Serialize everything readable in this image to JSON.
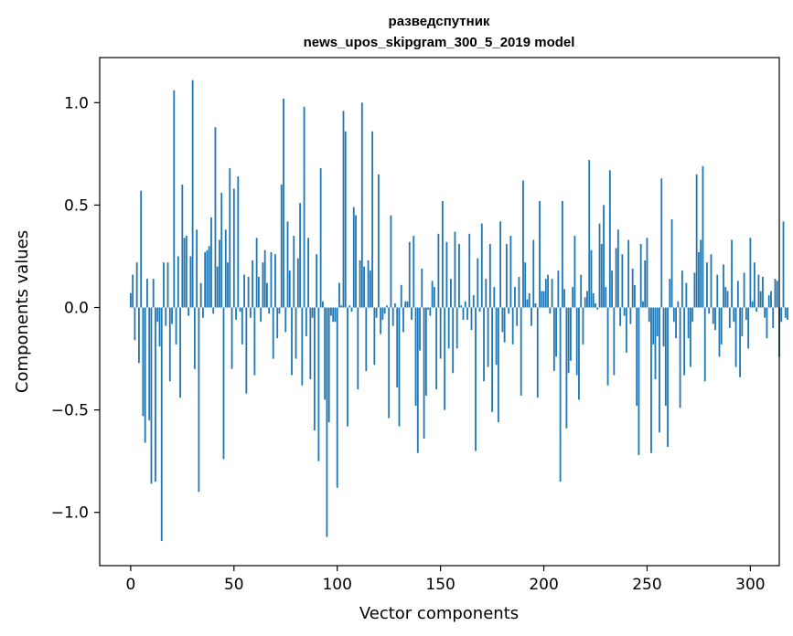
{
  "chart_data": {
    "type": "bar",
    "title_line1": "разведспутник",
    "title_line2": "news_upos_skipgram_300_5_2019 model",
    "xlabel": "Vector components",
    "ylabel": "Components values",
    "xlim": [
      -15,
      314
    ],
    "ylim": [
      -1.26,
      1.22
    ],
    "xticks": [
      0,
      50,
      100,
      150,
      200,
      250,
      300
    ],
    "xtick_labels": [
      "0",
      "50",
      "100",
      "150",
      "200",
      "250",
      "300"
    ],
    "yticks": [
      -1.0,
      -0.5,
      0.0,
      0.5,
      1.0
    ],
    "ytick_labels": [
      "−1.0",
      "−0.5",
      "0.0",
      "0.5",
      "1.0"
    ],
    "bar_color": "#1f77b4",
    "x_start": 0,
    "values": [
      0.07,
      0.16,
      -0.16,
      0.22,
      -0.27,
      0.57,
      -0.53,
      -0.66,
      0.14,
      -0.55,
      -0.86,
      0.14,
      -0.85,
      -0.07,
      -0.19,
      -1.14,
      0.22,
      -0.09,
      0.22,
      -0.36,
      -0.08,
      1.06,
      -0.18,
      0.25,
      -0.44,
      0.6,
      0.34,
      0.35,
      -0.04,
      0.25,
      1.11,
      -0.3,
      0.38,
      -0.9,
      0.12,
      -0.05,
      0.27,
      0.28,
      0.3,
      0.44,
      -0.03,
      0.88,
      0.2,
      0.33,
      0.56,
      -0.74,
      0.38,
      0.22,
      0.68,
      -0.3,
      0.58,
      -0.06,
      0.64,
      -0.02,
      -0.18,
      0.16,
      -0.42,
      0.15,
      -0.05,
      0.23,
      -0.33,
      0.34,
      0.15,
      -0.07,
      0.22,
      0.28,
      0.12,
      -0.03,
      0.27,
      -0.25,
      0.26,
      -0.15,
      -0.03,
      0.6,
      1.02,
      -0.12,
      0.42,
      0.18,
      -0.33,
      0.35,
      -0.25,
      0.24,
      0.51,
      -0.38,
      0.98,
      -0.14,
      0.34,
      -0.35,
      -0.05,
      -0.6,
      0.26,
      -0.75,
      0.68,
      0.03,
      -0.45,
      -1.12,
      -0.56,
      -0.04,
      -0.07,
      -0.07,
      -0.88,
      0.12,
      0.01,
      0.96,
      0.86,
      -0.58,
      0.01,
      -0.02,
      0.49,
      0.45,
      -0.4,
      0.23,
      1.0,
      0.2,
      -0.31,
      0.23,
      0.18,
      0.86,
      -0.28,
      -0.05,
      0.65,
      -0.13,
      -0.06,
      -0.03,
      0.01,
      -0.54,
      0.45,
      -0.09,
      0.02,
      -0.39,
      -0.58,
      0.11,
      -0.12,
      0.03,
      0.03,
      0.32,
      -0.06,
      0.35,
      -0.48,
      -0.71,
      -0.21,
      0.19,
      -0.64,
      -0.43,
      -0.01,
      -0.04,
      0.13,
      0.1,
      -0.4,
      0.36,
      -0.25,
      0.52,
      -0.5,
      0.32,
      -0.2,
      0.14,
      -0.32,
      0.37,
      -0.2,
      0.31,
      0.01,
      -0.06,
      0.03,
      -0.06,
      0.36,
      -0.11,
      0.06,
      -0.7,
      0.24,
      -0.02,
      0.41,
      -0.36,
      0.14,
      -0.29,
      0.31,
      -0.51,
      0.1,
      -0.28,
      -0.56,
      0.42,
      -0.12,
      -0.17,
      0.31,
      -0.03,
      0.35,
      -0.18,
      0.1,
      -0.09,
      0.15,
      -0.43,
      0.62,
      0.22,
      0.04,
      0.07,
      -0.09,
      0.33,
      0.02,
      -0.44,
      0.52,
      0.08,
      0.08,
      0.14,
      0.16,
      -0.03,
      0.14,
      -0.31,
      -0.24,
      0.18,
      -0.85,
      0.52,
      0.09,
      -0.59,
      -0.32,
      -0.26,
      0.1,
      0.35,
      -0.33,
      -0.45,
      0.16,
      -0.18,
      0.05,
      0.08,
      0.72,
      0.28,
      0.07,
      0.02,
      -0.01,
      0.41,
      0.31,
      0.5,
      0.1,
      -0.38,
      0.67,
      0.18,
      -0.33,
      0.29,
      0.38,
      -0.09,
      0.26,
      -0.04,
      -0.22,
      0.33,
      -0.08,
      0.19,
      0.11,
      -0.48,
      -0.72,
      0.31,
      0.03,
      0.23,
      0.34,
      -0.07,
      -0.71,
      -0.18,
      -0.35,
      -0.14,
      -0.61,
      0.63,
      -0.19,
      -0.48,
      -0.68,
      0.14,
      0.43,
      -0.07,
      -0.15,
      0.03,
      -0.49,
      0.18,
      -0.33,
      0.12,
      -0.15,
      -0.29,
      -0.07,
      0.17,
      0.65,
      0.27,
      0.33,
      0.69,
      -0.36,
      0.22,
      -0.03,
      0.26,
      -0.08,
      -0.11,
      0.16,
      -0.24,
      -0.18,
      0.21,
      0.1,
      0.08,
      -0.1,
      0.33,
      -0.07,
      -0.29,
      0.13,
      -0.34,
      -0.14,
      0.17,
      -0.06,
      -0.2,
      0.34,
      0.03,
      0.22,
      -0.02,
      0.16,
      0.08,
      0.15,
      -0.05,
      -0.15,
      0.06,
      0.08,
      -0.1,
      0.14,
      0.13,
      -0.24,
      -0.07,
      0.42,
      -0.05,
      -0.06
    ]
  }
}
